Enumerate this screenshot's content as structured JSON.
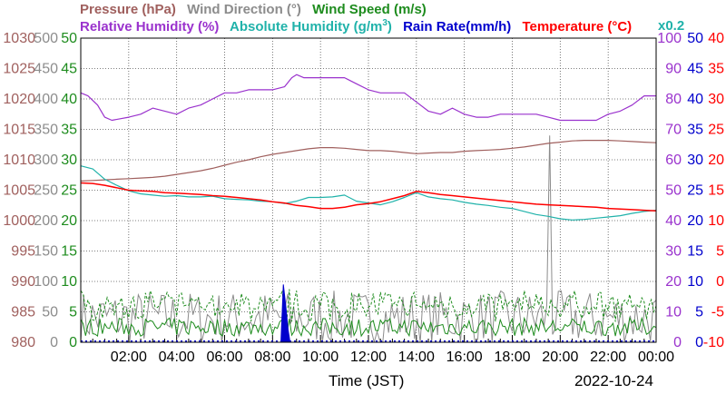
{
  "header": {
    "line1": [
      {
        "text": "Pressure (hPa)",
        "color": "#a0605e"
      },
      {
        "text": "Wind Direction (°)",
        "color": "#8c8c8c"
      },
      {
        "text": "Wind Speed (m/s)",
        "color": "#1e8c1e"
      }
    ],
    "line2": [
      {
        "text": "Relative Humidity (%)",
        "color": "#9a32cd"
      },
      {
        "text": "Absolute Humidity (g/m",
        "sup": "3",
        "tail": ")",
        "color": "#20b2aa"
      },
      {
        "text": "Rain Rate(mm/h)",
        "color": "#0000cd"
      },
      {
        "text": "Temperature (°C)",
        "color": "#ff0000"
      }
    ],
    "scale_note": {
      "text": "x0.2",
      "color": "#20b2aa"
    }
  },
  "footer": {
    "xlabel": "Time (JST)",
    "date": "2022-10-24"
  },
  "chart_data": {
    "type": "line",
    "x_ticks": [
      "02:00",
      "04:00",
      "06:00",
      "08:00",
      "10:00",
      "12:00",
      "14:00",
      "16:00",
      "18:00",
      "20:00",
      "22:00",
      "00:00"
    ],
    "x_tick_hours": [
      2,
      4,
      6,
      8,
      10,
      12,
      14,
      16,
      18,
      20,
      22,
      24
    ],
    "xlim": [
      0,
      24
    ],
    "grid": true,
    "left_axes": [
      {
        "name": "Pressure (hPa)",
        "color": "#a0605e",
        "ticks": [
          980,
          985,
          990,
          995,
          1000,
          1005,
          1010,
          1015,
          1020,
          1025,
          1030
        ],
        "ylim": [
          980,
          1030
        ]
      },
      {
        "name": "Wind Direction (°)",
        "color": "#8c8c8c",
        "ticks": [
          0,
          50,
          100,
          150,
          200,
          250,
          300,
          350,
          400,
          450,
          500
        ],
        "ylim": [
          0,
          500
        ]
      },
      {
        "name": "Wind Speed (m/s)",
        "color": "#1e8c1e",
        "ticks": [
          0,
          5,
          10,
          15,
          20,
          25,
          30,
          35,
          40,
          45,
          50
        ],
        "ylim": [
          0,
          50
        ]
      }
    ],
    "right_axes": [
      {
        "name": "Relative Humidity (%)",
        "color": "#9a32cd",
        "ticks": [
          0,
          10,
          20,
          30,
          40,
          50,
          60,
          70,
          80,
          90,
          100
        ],
        "ylim": [
          0,
          100
        ]
      },
      {
        "name": "Rain Rate(mm/h)",
        "color": "#0000cd",
        "ticks": [
          0,
          5,
          10,
          15,
          20,
          25,
          30,
          35,
          40,
          45,
          50
        ],
        "ylim": [
          0,
          50
        ]
      },
      {
        "name": "Temperature (°C)",
        "color": "#ff0000",
        "ticks": [
          -10,
          -5,
          0,
          5,
          10,
          15,
          20,
          25,
          30,
          35,
          40
        ],
        "ylim": [
          -10,
          40
        ]
      }
    ],
    "series": [
      {
        "name": "Relative Humidity (%)",
        "color": "#9a32cd",
        "axis": "Relative Humidity (%)",
        "width": 1.2,
        "x": [
          0,
          0.3,
          0.7,
          1.0,
          1.3,
          2.0,
          2.5,
          3.0,
          3.5,
          4.0,
          4.5,
          5.0,
          5.5,
          6.0,
          6.5,
          7.0,
          7.5,
          8.0,
          8.5,
          8.8,
          9.0,
          9.3,
          9.6,
          10.0,
          10.5,
          11.0,
          11.5,
          12.0,
          12.5,
          13.0,
          13.5,
          14.0,
          14.5,
          15.0,
          15.5,
          16.0,
          16.5,
          17.0,
          17.5,
          18.0,
          18.5,
          19.0,
          19.5,
          20.0,
          20.5,
          21.0,
          21.5,
          22.0,
          22.5,
          23.0,
          23.5,
          24.0
        ],
        "y": [
          82,
          81,
          78,
          74,
          73,
          74,
          75,
          77,
          76,
          75,
          77,
          78,
          80,
          82,
          82,
          83,
          83,
          83,
          84,
          87,
          88,
          87,
          87,
          87,
          87,
          87,
          85,
          83,
          82,
          82,
          82,
          79,
          76,
          75,
          77,
          75,
          74,
          74,
          75,
          75,
          75,
          75,
          74,
          73,
          73,
          73,
          73,
          75,
          76,
          78,
          81,
          81
        ]
      },
      {
        "name": "Pressure (hPa)",
        "color": "#a0605e",
        "axis": "Pressure (hPa)",
        "width": 1.2,
        "x": [
          0,
          0.5,
          1,
          1.5,
          2,
          2.5,
          3,
          3.5,
          4,
          4.5,
          5,
          5.5,
          6,
          6.5,
          7,
          7.5,
          8,
          8.5,
          9,
          9.5,
          10,
          10.5,
          11,
          11.5,
          12,
          12.5,
          13,
          13.5,
          14,
          14.5,
          15,
          15.5,
          16,
          16.5,
          17,
          17.5,
          18,
          18.5,
          19,
          19.5,
          20,
          20.5,
          21,
          21.5,
          22,
          22.5,
          23,
          23.5,
          24
        ],
        "y": [
          1006.5,
          1006.6,
          1006.7,
          1006.8,
          1006.9,
          1007.0,
          1007.1,
          1007.3,
          1007.6,
          1007.9,
          1008.2,
          1008.6,
          1009.1,
          1009.6,
          1010.0,
          1010.5,
          1010.9,
          1011.2,
          1011.5,
          1011.8,
          1012.0,
          1012.0,
          1011.9,
          1011.7,
          1011.5,
          1011.5,
          1011.4,
          1011.2,
          1011.0,
          1011.1,
          1011.2,
          1011.2,
          1011.4,
          1011.5,
          1011.6,
          1011.7,
          1011.9,
          1012.1,
          1012.4,
          1012.7,
          1012.9,
          1013.1,
          1013.2,
          1013.2,
          1013.2,
          1013.1,
          1013.0,
          1012.9,
          1012.8
        ]
      },
      {
        "name": "Absolute Humidity (g/m3) x0.2",
        "color": "#20b2aa",
        "axis": "Temperature (°C)",
        "width": 1.2,
        "x": [
          0,
          0.5,
          1,
          1.5,
          2,
          2.5,
          3,
          3.5,
          4,
          4.5,
          5,
          5.5,
          6,
          6.5,
          7,
          7.5,
          8,
          8.5,
          9,
          9.5,
          10,
          10.5,
          11,
          11.5,
          12,
          12.5,
          13,
          13.5,
          14,
          14.5,
          15,
          15.5,
          16,
          16.5,
          17,
          17.5,
          18,
          18.5,
          19,
          19.5,
          20,
          20.5,
          21,
          21.5,
          22,
          22.5,
          23,
          23.5,
          24
        ],
        "y": [
          19.0,
          18.5,
          16.8,
          15.8,
          14.9,
          14.4,
          14.2,
          14.0,
          14.1,
          13.9,
          13.9,
          14.0,
          13.6,
          13.5,
          13.4,
          13.2,
          13.1,
          12.8,
          13.2,
          13.8,
          13.8,
          13.9,
          14.2,
          13.2,
          12.9,
          12.6,
          13.1,
          13.8,
          14.6,
          13.9,
          13.6,
          13.4,
          13.0,
          12.7,
          12.5,
          12.2,
          12.0,
          11.5,
          11.0,
          10.7,
          10.3,
          10.1,
          10.2,
          10.4,
          10.6,
          10.8,
          11.2,
          11.5,
          11.7
        ]
      },
      {
        "name": "Temperature (°C)",
        "color": "#ff0000",
        "axis": "Temperature (°C)",
        "width": 1.5,
        "x": [
          0,
          0.5,
          1,
          1.5,
          2,
          2.5,
          3,
          3.5,
          4,
          4.5,
          5,
          5.5,
          6,
          6.5,
          7,
          7.5,
          8,
          8.5,
          9,
          9.5,
          10,
          10.5,
          11,
          11.5,
          12,
          12.5,
          13,
          13.5,
          14,
          14.5,
          15,
          15.5,
          16,
          16.5,
          17,
          17.5,
          18,
          18.5,
          19,
          19.5,
          20,
          20.5,
          21,
          21.5,
          22,
          22.5,
          23,
          23.5,
          24
        ],
        "y": [
          16.2,
          16.1,
          15.8,
          15.4,
          15.0,
          14.9,
          14.8,
          14.6,
          14.5,
          14.4,
          14.3,
          14.1,
          14.0,
          13.8,
          13.6,
          13.4,
          13.1,
          12.9,
          12.5,
          12.3,
          12.0,
          12.0,
          12.2,
          12.6,
          12.8,
          13.1,
          13.6,
          14.1,
          14.8,
          14.6,
          14.3,
          14.1,
          13.9,
          13.7,
          13.5,
          13.3,
          13.1,
          12.9,
          12.7,
          12.6,
          12.5,
          12.4,
          12.3,
          12.2,
          12.0,
          11.9,
          11.8,
          11.7,
          11.6
        ]
      }
    ],
    "noisy_series": [
      {
        "name": "Wind Direction (°)",
        "color": "#8c8c8c",
        "axis": "Wind Direction (°)",
        "base": 40,
        "range": 45,
        "spike": {
          "x": 19.6,
          "y": 340
        }
      },
      {
        "name": "Wind Speed (m/s)",
        "color": "#1e8c1e",
        "axis": "Wind Speed (m/s)",
        "base": 2.5,
        "range": 3.0,
        "dashed_max": true
      }
    ],
    "rain": {
      "name": "Rain Rate(mm/h)",
      "color": "#0000cd",
      "axis": "Rain Rate(mm/h)",
      "x": [
        8.45,
        8.55,
        8.65
      ],
      "y": [
        9.5,
        6.0,
        2.0
      ]
    }
  }
}
